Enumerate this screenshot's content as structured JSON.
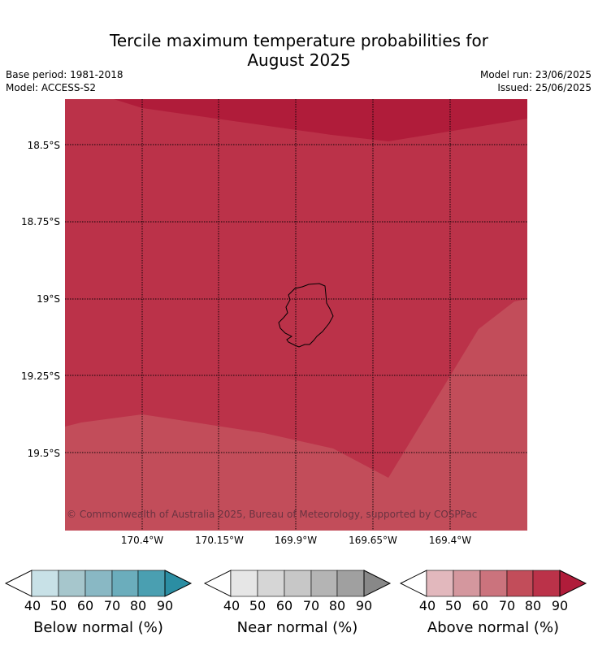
{
  "title": {
    "line1": "Tercile maximum temperature probabilities for",
    "line2": "August 2025"
  },
  "meta": {
    "base_period": "Base period: 1981-2018",
    "model": "Model: ACCESS-S2",
    "model_run": "Model run: 23/06/2025",
    "issued": "Issued: 25/06/2025"
  },
  "map": {
    "copyright": "© Commonwealth of Australia 2025, Bureau of Meteorology, supported by COSPPac",
    "lat_labels": [
      "18.5°S",
      "18.75°S",
      "19°S",
      "19.25°S",
      "19.5°S"
    ],
    "lon_labels": [
      "170.4°W",
      "170.15°W",
      "169.9°W",
      "169.65°W",
      "169.4°W"
    ],
    "dominant_category": "Above normal",
    "probability_bands_present": [
      "70-80",
      "80-90",
      "90+"
    ],
    "colors": {
      "above_70_80": "#c24d5a",
      "above_80_90": "#bb3249",
      "above_90_plus": "#b01c3a"
    }
  },
  "colorbars": {
    "ticks": [
      "40",
      "50",
      "60",
      "70",
      "80",
      "90"
    ],
    "below": {
      "label": "Below normal (%)",
      "colors": [
        "#c8e1e7",
        "#a6c6cc",
        "#89b8c4",
        "#6badbc",
        "#4a9fb1",
        "#2b8ea3"
      ]
    },
    "near": {
      "label": "Near normal (%)",
      "colors": [
        "#e6e6e6",
        "#d6d6d6",
        "#c7c7c7",
        "#b4b4b4",
        "#a0a0a0",
        "#888888"
      ]
    },
    "above": {
      "label": "Above normal (%)",
      "colors": [
        "#e2b8bd",
        "#d4979e",
        "#cb737d",
        "#c24d5a",
        "#bb3249",
        "#b01c3a"
      ]
    }
  }
}
